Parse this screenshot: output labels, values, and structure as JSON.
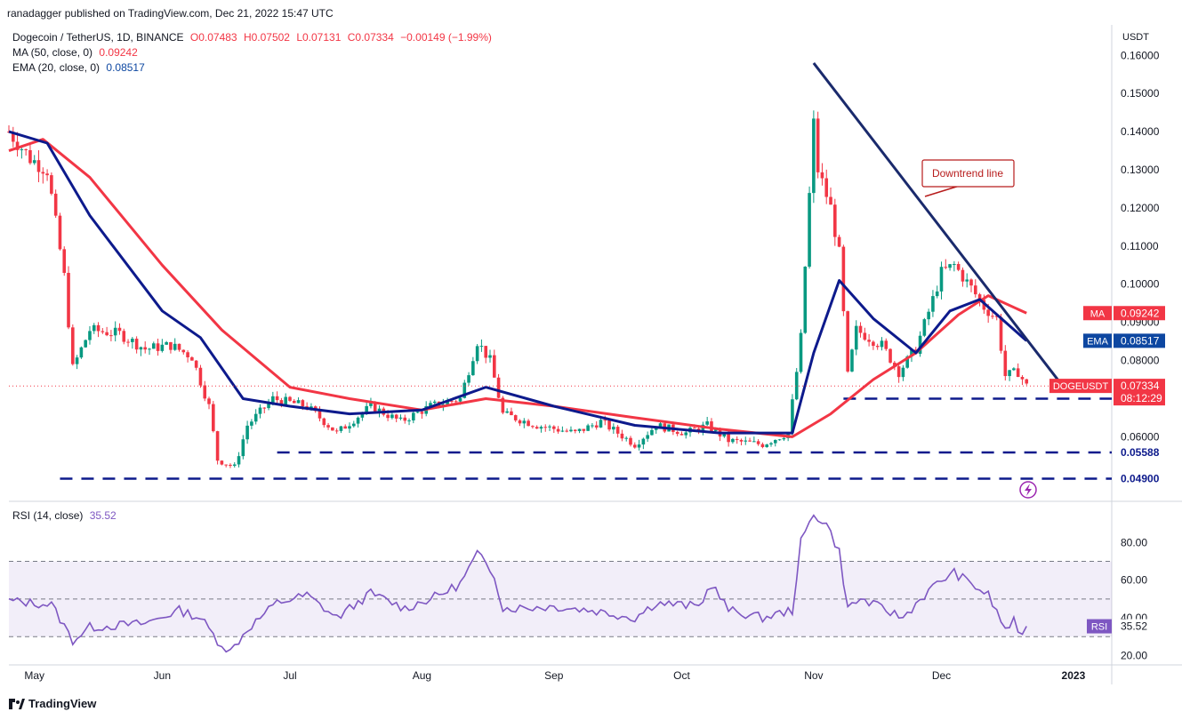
{
  "publisher": "ranadagger published on TradingView.com, Dec 21, 2022 15:47 UTC",
  "header": {
    "symbol": "Dogecoin / TetherUS, 1D, BINANCE",
    "open": "O0.07483",
    "high": "H0.07502",
    "low": "L0.07131",
    "close": "C0.07334",
    "change": "−0.00149 (−1.99%)",
    "ma_label": "MA (50, close, 0)",
    "ma_value": "0.09242",
    "ema_label": "EMA (20, close, 0)",
    "ema_value": "0.08517",
    "rsi_label": "RSI (14, close)",
    "rsi_value": "35.52"
  },
  "footer": "TradingView",
  "chart_data": {
    "type": "candlestick",
    "currency_label": "USDT",
    "y_ticks": [
      "0.16000",
      "0.15000",
      "0.14000",
      "0.13000",
      "0.12000",
      "0.11000",
      "0.10000",
      "0.09000",
      "0.08000",
      "0.07000",
      "0.06000",
      "0.05588",
      "0.04900"
    ],
    "ylim": [
      0.044,
      0.168
    ],
    "x_ticks": [
      "May",
      "Jun",
      "Jul",
      "Aug",
      "Sep",
      "Oct",
      "Nov",
      "Dec",
      "2023"
    ],
    "x_range": [
      "2022-04-26",
      "2023-01-10"
    ],
    "price_badges": [
      {
        "label": "MA",
        "value": "0.09242",
        "color": "#f23645"
      },
      {
        "label": "EMA",
        "value": "0.08517",
        "color": "#0d47a1"
      },
      {
        "label": "DOGEUSDT",
        "value": "0.07334",
        "countdown": "08:12:29",
        "color": "#f23645"
      }
    ],
    "support_levels": [
      "0.07000",
      "0.05588",
      "0.04900"
    ],
    "annotation": "Downtrend line",
    "downtrend_line": {
      "start": [
        "2022-11-01",
        0.158
      ],
      "end": [
        "2022-12-29",
        0.074
      ]
    },
    "price_path": [
      [
        "2022-04-26",
        0.14
      ],
      [
        "2022-05-01",
        0.133
      ],
      [
        "2022-05-05",
        0.13
      ],
      [
        "2022-05-09",
        0.102
      ],
      [
        "2022-05-11",
        0.078
      ],
      [
        "2022-05-15",
        0.088
      ],
      [
        "2022-05-22",
        0.087
      ],
      [
        "2022-05-28",
        0.083
      ],
      [
        "2022-06-03",
        0.084
      ],
      [
        "2022-06-08",
        0.081
      ],
      [
        "2022-06-12",
        0.068
      ],
      [
        "2022-06-14",
        0.054
      ],
      [
        "2022-06-18",
        0.052
      ],
      [
        "2022-06-21",
        0.063
      ],
      [
        "2022-06-27",
        0.07
      ],
      [
        "2022-07-05",
        0.068
      ],
      [
        "2022-07-12",
        0.061
      ],
      [
        "2022-07-20",
        0.068
      ],
      [
        "2022-07-27",
        0.064
      ],
      [
        "2022-08-03",
        0.068
      ],
      [
        "2022-08-10",
        0.07
      ],
      [
        "2022-08-14",
        0.085
      ],
      [
        "2022-08-17",
        0.08
      ],
      [
        "2022-08-20",
        0.066
      ],
      [
        "2022-08-28",
        0.063
      ],
      [
        "2022-09-06",
        0.061
      ],
      [
        "2022-09-12",
        0.064
      ],
      [
        "2022-09-20",
        0.058
      ],
      [
        "2022-09-25",
        0.063
      ],
      [
        "2022-10-02",
        0.061
      ],
      [
        "2022-10-07",
        0.063
      ],
      [
        "2022-10-12",
        0.059
      ],
      [
        "2022-10-20",
        0.058
      ],
      [
        "2022-10-26",
        0.061
      ],
      [
        "2022-10-28",
        0.077
      ],
      [
        "2022-10-29",
        0.086
      ],
      [
        "2022-11-01",
        0.142
      ],
      [
        "2022-11-02",
        0.13
      ],
      [
        "2022-11-05",
        0.12
      ],
      [
        "2022-11-07",
        0.108
      ],
      [
        "2022-11-09",
        0.076
      ],
      [
        "2022-11-11",
        0.088
      ],
      [
        "2022-11-17",
        0.084
      ],
      [
        "2022-11-21",
        0.077
      ],
      [
        "2022-11-25",
        0.083
      ],
      [
        "2022-11-29",
        0.096
      ],
      [
        "2022-12-01",
        0.103
      ],
      [
        "2022-12-04",
        0.105
      ],
      [
        "2022-12-08",
        0.099
      ],
      [
        "2022-12-11",
        0.094
      ],
      [
        "2022-12-14",
        0.091
      ],
      [
        "2022-12-16",
        0.076
      ],
      [
        "2022-12-19",
        0.077
      ],
      [
        "2022-12-21",
        0.0733
      ]
    ],
    "ma_path": [
      [
        "2022-04-26",
        0.135
      ],
      [
        "2022-05-04",
        0.138
      ],
      [
        "2022-05-15",
        0.128
      ],
      [
        "2022-06-01",
        0.105
      ],
      [
        "2022-06-15",
        0.088
      ],
      [
        "2022-07-01",
        0.073
      ],
      [
        "2022-07-15",
        0.07
      ],
      [
        "2022-08-01",
        0.067
      ],
      [
        "2022-08-16",
        0.07
      ],
      [
        "2022-09-01",
        0.068
      ],
      [
        "2022-09-20",
        0.065
      ],
      [
        "2022-10-10",
        0.062
      ],
      [
        "2022-10-27",
        0.06
      ],
      [
        "2022-11-05",
        0.066
      ],
      [
        "2022-11-15",
        0.075
      ],
      [
        "2022-11-25",
        0.082
      ],
      [
        "2022-12-05",
        0.092
      ],
      [
        "2022-12-12",
        0.097
      ],
      [
        "2022-12-21",
        0.09242
      ]
    ],
    "ema_path": [
      [
        "2022-04-26",
        0.14
      ],
      [
        "2022-05-05",
        0.137
      ],
      [
        "2022-05-15",
        0.118
      ],
      [
        "2022-06-01",
        0.093
      ],
      [
        "2022-06-10",
        0.086
      ],
      [
        "2022-06-20",
        0.07
      ],
      [
        "2022-07-01",
        0.068
      ],
      [
        "2022-07-15",
        0.066
      ],
      [
        "2022-08-01",
        0.067
      ],
      [
        "2022-08-16",
        0.073
      ],
      [
        "2022-09-01",
        0.068
      ],
      [
        "2022-09-20",
        0.063
      ],
      [
        "2022-10-10",
        0.061
      ],
      [
        "2022-10-27",
        0.061
      ],
      [
        "2022-11-01",
        0.082
      ],
      [
        "2022-11-07",
        0.101
      ],
      [
        "2022-11-15",
        0.091
      ],
      [
        "2022-11-25",
        0.082
      ],
      [
        "2022-12-03",
        0.093
      ],
      [
        "2022-12-10",
        0.096
      ],
      [
        "2022-12-21",
        0.08517
      ]
    ],
    "rsi": {
      "y_ticks": [
        "80.00",
        "60.00",
        "40.00",
        "20.00"
      ],
      "ylim": [
        15,
        100
      ],
      "band": [
        30,
        70
      ],
      "path": [
        [
          "2022-04-26",
          49
        ],
        [
          "2022-05-06",
          47
        ],
        [
          "2022-05-11",
          28
        ],
        [
          "2022-05-15",
          35
        ],
        [
          "2022-05-28",
          37
        ],
        [
          "2022-06-05",
          44
        ],
        [
          "2022-06-10",
          40
        ],
        [
          "2022-06-14",
          28
        ],
        [
          "2022-06-17",
          22
        ],
        [
          "2022-06-21",
          34
        ],
        [
          "2022-06-28",
          48
        ],
        [
          "2022-07-05",
          52
        ],
        [
          "2022-07-12",
          40
        ],
        [
          "2022-07-20",
          53
        ],
        [
          "2022-07-28",
          45
        ],
        [
          "2022-08-05",
          52
        ],
        [
          "2022-08-10",
          58
        ],
        [
          "2022-08-14",
          74
        ],
        [
          "2022-08-18",
          63
        ],
        [
          "2022-08-20",
          45
        ],
        [
          "2022-09-01",
          46
        ],
        [
          "2022-09-10",
          44
        ],
        [
          "2022-09-20",
          40
        ],
        [
          "2022-09-25",
          48
        ],
        [
          "2022-10-05",
          46
        ],
        [
          "2022-10-08",
          58
        ],
        [
          "2022-10-12",
          44
        ],
        [
          "2022-10-20",
          40
        ],
        [
          "2022-10-27",
          44
        ],
        [
          "2022-10-29",
          80
        ],
        [
          "2022-11-01",
          95
        ],
        [
          "2022-11-04",
          90
        ],
        [
          "2022-11-07",
          75
        ],
        [
          "2022-11-09",
          45
        ],
        [
          "2022-11-12",
          50
        ],
        [
          "2022-11-22",
          40
        ],
        [
          "2022-11-26",
          50
        ],
        [
          "2022-12-01",
          60
        ],
        [
          "2022-12-04",
          64
        ],
        [
          "2022-12-08",
          58
        ],
        [
          "2022-12-12",
          52
        ],
        [
          "2022-12-16",
          34
        ],
        [
          "2022-12-18",
          38
        ],
        [
          "2022-12-19",
          30
        ],
        [
          "2022-12-21",
          35.52
        ]
      ]
    }
  }
}
